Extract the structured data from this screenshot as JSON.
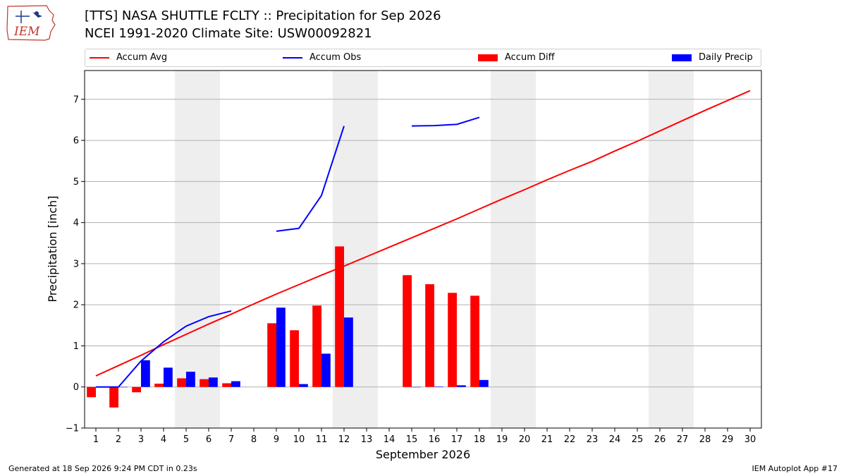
{
  "title_line1": "[TTS] NASA SHUTTLE FCLTY :: Precipitation for Sep 2026",
  "title_line2": "NCEI 1991-2020 Climate Site: USW00092821",
  "logo_text": "IEM",
  "footer_left": "Generated at 18 Sep 2026 9:24 PM CDT in 0.23s",
  "footer_right": "IEM Autoplot App #17",
  "colors": {
    "avg": "#ff0000",
    "obs": "#0000ff",
    "diff": "#ff0000",
    "daily": "#0000ff",
    "weekend": "#eeeeee",
    "grid": "#b0b0b0"
  },
  "legend": [
    {
      "label": "Accum Avg",
      "kind": "line",
      "color": "#ff0000"
    },
    {
      "label": "Accum Obs",
      "kind": "line",
      "color": "#0000ff"
    },
    {
      "label": "Accum Diff",
      "kind": "box",
      "color": "#ff0000"
    },
    {
      "label": "Daily Precip",
      "kind": "box",
      "color": "#0000ff"
    }
  ],
  "chart_data": {
    "type": "bar",
    "title": "[TTS] NASA SHUTTLE FCLTY :: Precipitation for Sep 2026",
    "xlabel": "September 2026",
    "ylabel": "Precipitation [inch]",
    "xlim": [
      0.5,
      30.5
    ],
    "ylim": [
      -1.0,
      7.7
    ],
    "xticks": [
      1,
      2,
      3,
      4,
      5,
      6,
      7,
      8,
      9,
      10,
      11,
      12,
      13,
      14,
      15,
      16,
      17,
      18,
      19,
      20,
      21,
      22,
      23,
      24,
      25,
      26,
      27,
      28,
      29,
      30
    ],
    "yticks": [
      -1,
      0,
      1,
      2,
      3,
      4,
      5,
      6,
      7
    ],
    "grid": "horizontal",
    "weekend_shading": [
      [
        4.5,
        6.5
      ],
      [
        11.5,
        13.5
      ],
      [
        18.5,
        20.5
      ],
      [
        25.5,
        27.5
      ]
    ],
    "accum_avg": {
      "name": "Accum Avg",
      "x": [
        1,
        2,
        3,
        4,
        5,
        6,
        7,
        8,
        9,
        10,
        11,
        12,
        13,
        14,
        15,
        16,
        17,
        18,
        19,
        20,
        21,
        22,
        23,
        24,
        25,
        26,
        27,
        28,
        29,
        30
      ],
      "y": [
        0.27,
        0.52,
        0.77,
        1.03,
        1.28,
        1.53,
        1.77,
        2.02,
        2.26,
        2.49,
        2.72,
        2.94,
        3.17,
        3.4,
        3.63,
        3.86,
        4.09,
        4.33,
        4.57,
        4.8,
        5.04,
        5.27,
        5.49,
        5.74,
        5.98,
        6.23,
        6.48,
        6.73,
        6.97,
        7.21
      ]
    },
    "accum_obs": {
      "name": "Accum Obs",
      "x": [
        1,
        2,
        3,
        4,
        5,
        6,
        7,
        8,
        9,
        10,
        11,
        12,
        13,
        14,
        15,
        16,
        17,
        18
      ],
      "y": [
        0.0,
        0.0,
        0.63,
        1.1,
        1.48,
        1.71,
        1.85,
        null,
        3.79,
        3.86,
        4.66,
        6.35,
        null,
        null,
        6.35,
        6.36,
        6.39,
        6.56
      ]
    },
    "accum_diff": {
      "name": "Accum Diff",
      "x": [
        1,
        2,
        3,
        4,
        5,
        6,
        7,
        8,
        9,
        10,
        11,
        12,
        13,
        14,
        15,
        16,
        17,
        18
      ],
      "y": [
        -0.25,
        -0.5,
        -0.13,
        0.08,
        0.21,
        0.19,
        0.09,
        null,
        1.55,
        1.38,
        1.98,
        3.42,
        null,
        null,
        2.72,
        2.5,
        2.29,
        2.22
      ]
    },
    "daily_precip": {
      "name": "Daily Precip",
      "x": [
        1,
        2,
        3,
        4,
        5,
        6,
        7,
        8,
        9,
        10,
        11,
        12,
        13,
        14,
        15,
        16,
        17,
        18
      ],
      "y": [
        0.0,
        0.0,
        0.65,
        0.47,
        0.37,
        0.23,
        0.14,
        null,
        1.93,
        0.07,
        0.81,
        1.69,
        null,
        null,
        0.0,
        0.01,
        0.04,
        0.17
      ]
    }
  }
}
